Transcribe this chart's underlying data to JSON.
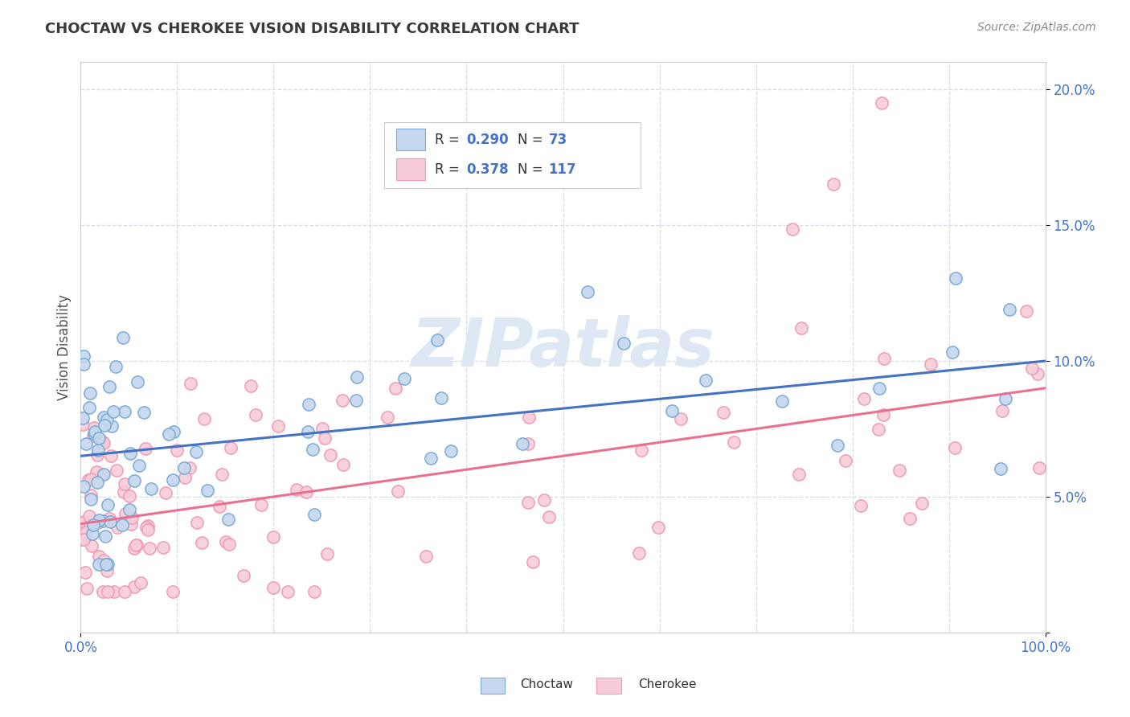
{
  "title": "CHOCTAW VS CHEROKEE VISION DISABILITY CORRELATION CHART",
  "source": "Source: ZipAtlas.com",
  "ylabel": "Vision Disability",
  "xlim": [
    0,
    100
  ],
  "ylim": [
    0,
    21
  ],
  "choctaw_color_fill": "#c5d8ef",
  "choctaw_color_edge": "#7aabd4",
  "cherokee_color_fill": "#f7ccd8",
  "cherokee_color_edge": "#f09ab4",
  "line_choctaw": "#4472c4",
  "line_cherokee": "#e87090",
  "title_color": "#3a3a3a",
  "source_color": "#888888",
  "watermark": "ZIPatlas",
  "watermark_color": "#dde8f4",
  "background_color": "#ffffff",
  "grid_color": "#d5dee8",
  "legend_r1": "R = 0.290",
  "legend_n1": "N = 73",
  "legend_r2": "R = 0.378",
  "legend_n2": "N = 117",
  "value_color": "#4472c4",
  "label_color": "#555555",
  "tick_color": "#4472c4",
  "choctaw_line_start": 6.5,
  "choctaw_line_end": 10.0,
  "cherokee_line_start": 4.0,
  "cherokee_line_end": 9.0
}
